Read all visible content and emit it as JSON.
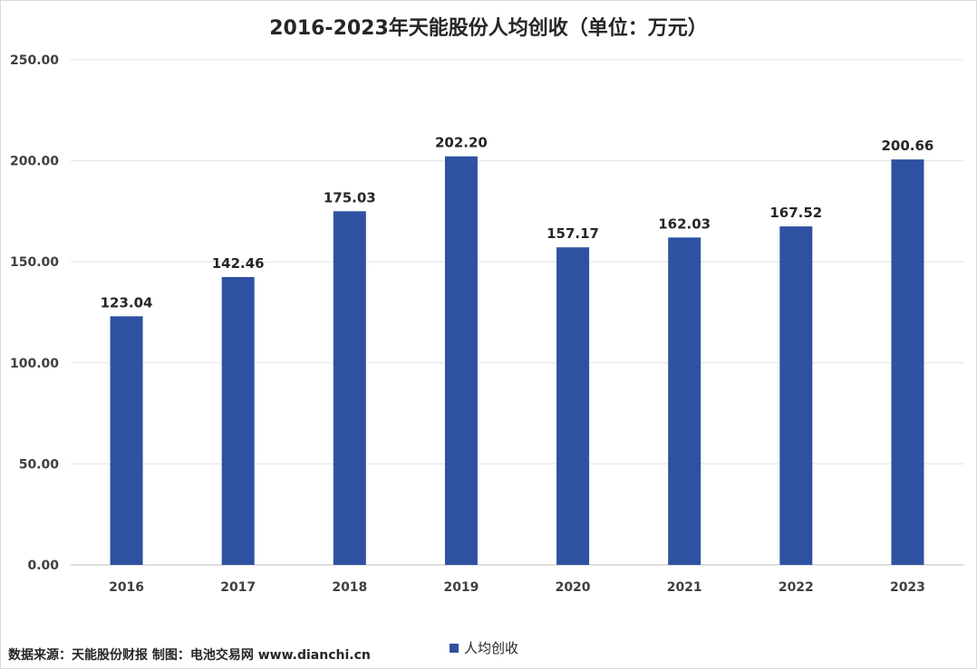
{
  "chart_data": {
    "type": "bar",
    "title": "2016-2023年天能股份人均创收（单位：万元）",
    "categories": [
      "2016",
      "2017",
      "2018",
      "2019",
      "2020",
      "2021",
      "2022",
      "2023"
    ],
    "series": [
      {
        "name": "人均创收",
        "values": [
          123.04,
          142.46,
          175.03,
          202.2,
          157.17,
          162.03,
          167.52,
          200.66
        ],
        "color": "#2E52A1"
      }
    ],
    "value_labels": [
      "123.04",
      "142.46",
      "175.03",
      "202.20",
      "157.17",
      "162.03",
      "167.52",
      "200.66"
    ],
    "ylim": [
      0,
      250
    ],
    "yticks": [
      "0.00",
      "50.00",
      "100.00",
      "150.00",
      "200.00",
      "250.00"
    ],
    "grid": true,
    "legend_position": "bottom"
  },
  "source_text": "数据来源：天能股份财报  制图：电池交易网 www.dianchi.cn"
}
